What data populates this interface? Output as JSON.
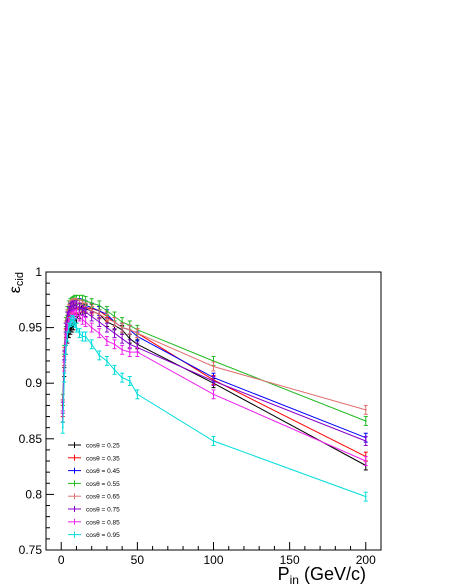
{
  "chart_data": {
    "type": "line",
    "title": "",
    "xlabel": "P_in (GeV/c)",
    "ylabel": "ε_cid",
    "xlim": [
      -10,
      210
    ],
    "ylim": [
      0.75,
      1.0
    ],
    "x_ticks": [
      0,
      50,
      100,
      150,
      200
    ],
    "y_ticks": [
      0.75,
      0.8,
      0.85,
      0.9,
      0.95,
      1.0
    ],
    "x_tick_labels": [
      "0",
      "50",
      "100",
      "150",
      "200"
    ],
    "y_tick_labels": [
      "0.75",
      "0.8",
      "0.85",
      "0.9",
      "0.95",
      "1"
    ],
    "grid": false,
    "legend_position": "bottom-left",
    "error_bars": true,
    "x": [
      1,
      2,
      3,
      4,
      5,
      6,
      7,
      8,
      9,
      10,
      12,
      14,
      16,
      20,
      25,
      30,
      35,
      40,
      45,
      50,
      100,
      200
    ],
    "series": [
      {
        "name": "cosθ = 0.25",
        "color": "#000000",
        "values": [
          0.87,
          0.91,
          0.93,
          0.94,
          0.945,
          0.948,
          0.95,
          0.952,
          0.956,
          0.958,
          0.962,
          0.965,
          0.967,
          0.965,
          0.962,
          0.955,
          0.952,
          0.948,
          0.94,
          0.935,
          0.9,
          0.826
        ],
        "errors": [
          0.005,
          0.004,
          0.004,
          0.004,
          0.004,
          0.004,
          0.004,
          0.004,
          0.004,
          0.004,
          0.004,
          0.004,
          0.004,
          0.004,
          0.004,
          0.004,
          0.004,
          0.004,
          0.004,
          0.004,
          0.004,
          0.004
        ]
      },
      {
        "name": "cosθ = 0.35",
        "color": "#ff0000",
        "values": [
          0.875,
          0.92,
          0.945,
          0.955,
          0.96,
          0.963,
          0.965,
          0.966,
          0.967,
          0.967,
          0.968,
          0.968,
          0.968,
          0.967,
          0.965,
          0.96,
          0.955,
          0.95,
          0.948,
          0.945,
          0.903,
          0.834
        ],
        "errors": [
          0.005,
          0.004,
          0.004,
          0.004,
          0.004,
          0.004,
          0.004,
          0.004,
          0.004,
          0.004,
          0.004,
          0.004,
          0.004,
          0.004,
          0.004,
          0.004,
          0.004,
          0.004,
          0.004,
          0.004,
          0.004,
          0.004
        ]
      },
      {
        "name": "cosθ = 0.45",
        "color": "#0000ff",
        "values": [
          0.88,
          0.925,
          0.95,
          0.96,
          0.965,
          0.968,
          0.97,
          0.971,
          0.972,
          0.972,
          0.972,
          0.971,
          0.97,
          0.968,
          0.965,
          0.962,
          0.955,
          0.95,
          0.948,
          0.942,
          0.905,
          0.851
        ],
        "errors": [
          0.005,
          0.004,
          0.004,
          0.004,
          0.004,
          0.004,
          0.004,
          0.004,
          0.004,
          0.004,
          0.004,
          0.004,
          0.004,
          0.004,
          0.004,
          0.004,
          0.004,
          0.004,
          0.004,
          0.004,
          0.004,
          0.004
        ]
      },
      {
        "name": "cosθ = 0.55",
        "color": "#22bb22",
        "values": [
          0.885,
          0.93,
          0.955,
          0.965,
          0.97,
          0.972,
          0.973,
          0.974,
          0.975,
          0.975,
          0.975,
          0.975,
          0.974,
          0.972,
          0.97,
          0.965,
          0.96,
          0.955,
          0.952,
          0.948,
          0.92,
          0.866
        ],
        "errors": [
          0.005,
          0.004,
          0.004,
          0.004,
          0.004,
          0.004,
          0.004,
          0.004,
          0.004,
          0.004,
          0.004,
          0.004,
          0.004,
          0.004,
          0.004,
          0.004,
          0.004,
          0.004,
          0.004,
          0.004,
          0.004,
          0.004
        ]
      },
      {
        "name": "cosθ = 0.65",
        "color": "#e07070",
        "values": [
          0.88,
          0.928,
          0.952,
          0.962,
          0.967,
          0.97,
          0.971,
          0.972,
          0.972,
          0.972,
          0.971,
          0.97,
          0.968,
          0.965,
          0.962,
          0.958,
          0.955,
          0.95,
          0.948,
          0.945,
          0.915,
          0.876
        ],
        "errors": [
          0.005,
          0.004,
          0.004,
          0.004,
          0.004,
          0.004,
          0.004,
          0.004,
          0.004,
          0.004,
          0.004,
          0.004,
          0.004,
          0.004,
          0.004,
          0.004,
          0.004,
          0.004,
          0.004,
          0.004,
          0.004,
          0.004
        ]
      },
      {
        "name": "cosθ = 0.75",
        "color": "#8800cc",
        "values": [
          0.878,
          0.925,
          0.95,
          0.96,
          0.965,
          0.968,
          0.969,
          0.97,
          0.97,
          0.97,
          0.968,
          0.966,
          0.964,
          0.96,
          0.955,
          0.95,
          0.945,
          0.94,
          0.935,
          0.932,
          0.902,
          0.848
        ],
        "errors": [
          0.005,
          0.004,
          0.004,
          0.004,
          0.004,
          0.004,
          0.004,
          0.004,
          0.004,
          0.004,
          0.004,
          0.004,
          0.004,
          0.004,
          0.004,
          0.004,
          0.004,
          0.004,
          0.004,
          0.004,
          0.004,
          0.004
        ]
      },
      {
        "name": "cosθ = 0.85",
        "color": "#ee22ee",
        "values": [
          0.87,
          0.915,
          0.94,
          0.95,
          0.955,
          0.958,
          0.96,
          0.961,
          0.962,
          0.962,
          0.96,
          0.957,
          0.955,
          0.95,
          0.945,
          0.938,
          0.935,
          0.93,
          0.928,
          0.928,
          0.89,
          0.83
        ],
        "errors": [
          0.005,
          0.004,
          0.004,
          0.004,
          0.004,
          0.004,
          0.004,
          0.004,
          0.004,
          0.004,
          0.004,
          0.004,
          0.004,
          0.004,
          0.004,
          0.004,
          0.004,
          0.004,
          0.004,
          0.004,
          0.004,
          0.004
        ]
      },
      {
        "name": "cosθ = 0.95",
        "color": "#00dddd",
        "values": [
          0.86,
          0.905,
          0.93,
          0.942,
          0.95,
          0.955,
          0.957,
          0.956,
          0.954,
          0.95,
          0.945,
          0.942,
          0.942,
          0.935,
          0.925,
          0.92,
          0.912,
          0.905,
          0.902,
          0.89,
          0.848,
          0.798
        ],
        "errors": [
          0.005,
          0.004,
          0.004,
          0.004,
          0.004,
          0.004,
          0.004,
          0.004,
          0.004,
          0.004,
          0.004,
          0.004,
          0.004,
          0.004,
          0.004,
          0.004,
          0.004,
          0.004,
          0.004,
          0.004,
          0.004,
          0.004
        ]
      }
    ]
  }
}
